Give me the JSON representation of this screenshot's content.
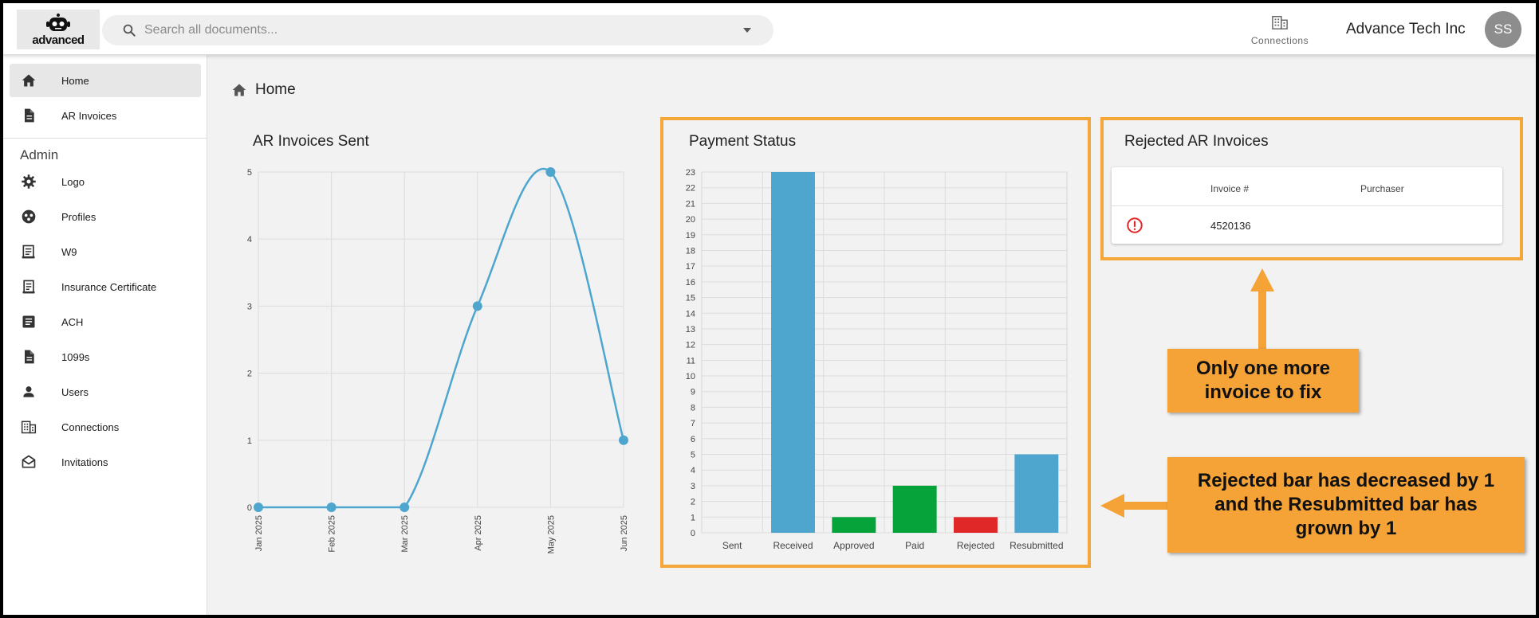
{
  "header": {
    "logo_text": "advanced",
    "search": {
      "placeholder": "Search all documents..."
    },
    "connections_label": "Connections",
    "company_name": "Advance Tech Inc",
    "avatar_initials": "SS"
  },
  "sidebar": {
    "items": [
      {
        "label": "Home",
        "icon": "home-icon",
        "active": true
      },
      {
        "label": "AR Invoices",
        "icon": "document-icon"
      }
    ],
    "admin_heading": "Admin",
    "admin_items": [
      {
        "label": "Logo",
        "icon": "gear-icon"
      },
      {
        "label": "Profiles",
        "icon": "profiles-icon"
      },
      {
        "label": "W9",
        "icon": "form-icon"
      },
      {
        "label": "Insurance Certificate",
        "icon": "certificate-icon"
      },
      {
        "label": "ACH",
        "icon": "ach-icon"
      },
      {
        "label": "1099s",
        "icon": "document-icon"
      },
      {
        "label": "Users",
        "icon": "person-icon"
      },
      {
        "label": "Connections",
        "icon": "building-icon"
      },
      {
        "label": "Invitations",
        "icon": "envelope-icon"
      }
    ]
  },
  "breadcrumb": {
    "label": "Home"
  },
  "chart_data": [
    {
      "type": "line",
      "title": "AR Invoices Sent",
      "categories": [
        "Jan 2025",
        "Feb 2025",
        "Mar 2025",
        "Apr 2025",
        "May 2025",
        "Jun 2025"
      ],
      "values": [
        0,
        0,
        0,
        3,
        5,
        1
      ],
      "ylim": [
        0,
        5
      ],
      "yticks": [
        0,
        1,
        2,
        3,
        4,
        5
      ],
      "grid": true,
      "color": "#4ea6cf"
    },
    {
      "type": "bar",
      "title": "Payment Status",
      "categories": [
        "Sent",
        "Received",
        "Approved",
        "Paid",
        "Rejected",
        "Resubmitted"
      ],
      "values": [
        0,
        23,
        1,
        3,
        1,
        5
      ],
      "colors": [
        "#4ea6cf",
        "#4ea6cf",
        "#06a33b",
        "#06a33b",
        "#e02828",
        "#4ea6cf"
      ],
      "ylim": [
        0,
        23
      ],
      "grid": true
    }
  ],
  "rejected": {
    "title": "Rejected AR Invoices",
    "columns": [
      "Invoice #",
      "Purchaser"
    ],
    "rows": [
      {
        "invoice": "4520136",
        "purchaser": "",
        "icon": "error-icon"
      }
    ]
  },
  "annotations": {
    "callout_top": "Only one more invoice to fix",
    "callout_bottom": "Rejected bar has decreased by 1 and the Resubmitted bar has grown by 1",
    "highlight_color": "#f4a639"
  }
}
